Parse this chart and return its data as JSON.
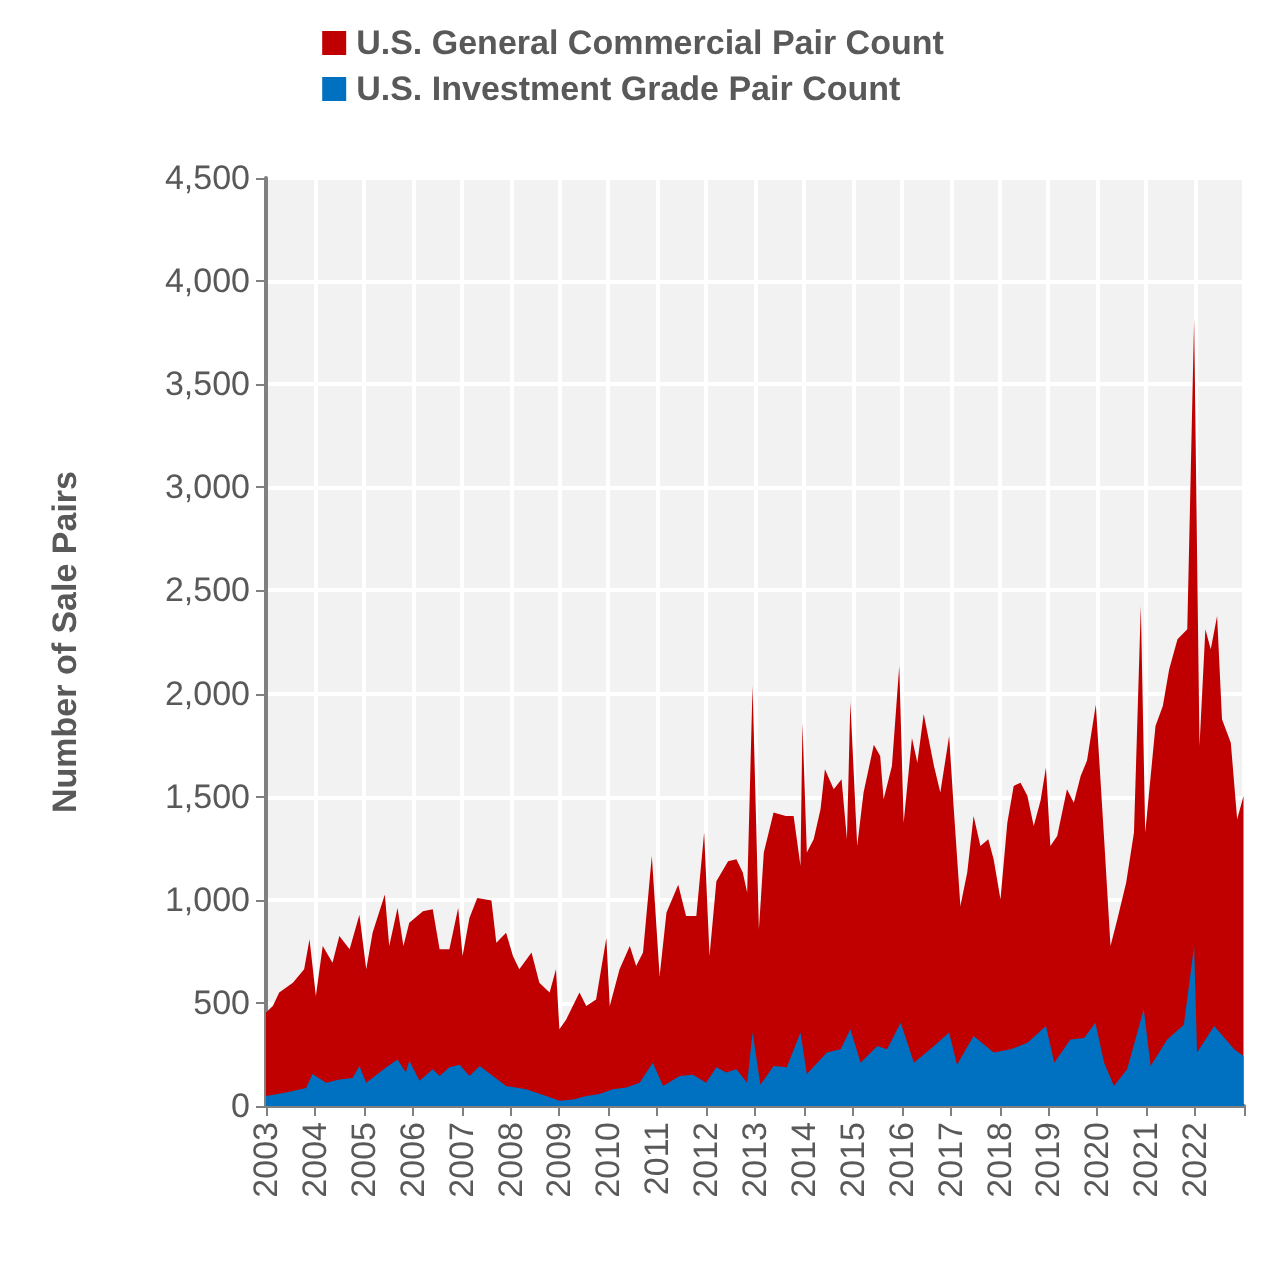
{
  "chart_data": {
    "type": "area",
    "ylabel": "Number of Sale Pairs",
    "legend": "top",
    "grid": true,
    "xlim": [
      2003,
      2023
    ],
    "xticks": [
      2003,
      2004,
      2005,
      2006,
      2007,
      2008,
      2009,
      2010,
      2011,
      2012,
      2013,
      2014,
      2015,
      2016,
      2017,
      2018,
      2019,
      2020,
      2021,
      2022
    ],
    "ylim": [
      0,
      4500
    ],
    "yticks": [
      {
        "value": 0,
        "label": "0"
      },
      {
        "value": 500,
        "label": "500"
      },
      {
        "value": 1000,
        "label": "1,000"
      },
      {
        "value": 1500,
        "label": "1,500"
      },
      {
        "value": 2000,
        "label": "2,000"
      },
      {
        "value": 2500,
        "label": "2,500"
      },
      {
        "value": 3000,
        "label": "3,000"
      },
      {
        "value": 3500,
        "label": "3,500"
      },
      {
        "value": 4000,
        "label": "4,000"
      },
      {
        "value": 4500,
        "label": "4,500"
      }
    ],
    "series": [
      {
        "name": "U.S. General Commercial Pair Count",
        "color": "#c00000",
        "x": [
          2003.0,
          2003.14,
          2003.27,
          2003.55,
          2003.78,
          2003.89,
          2004.02,
          2004.16,
          2004.36,
          2004.5,
          2004.71,
          2004.91,
          2005.05,
          2005.18,
          2005.43,
          2005.52,
          2005.69,
          2005.81,
          2005.93,
          2006.21,
          2006.41,
          2006.55,
          2006.75,
          2006.93,
          2007.02,
          2007.16,
          2007.32,
          2007.61,
          2007.71,
          2007.91,
          2008.05,
          2008.18,
          2008.43,
          2008.59,
          2008.8,
          2008.93,
          2009.0,
          2009.14,
          2009.41,
          2009.55,
          2009.75,
          2009.96,
          2010.03,
          2010.23,
          2010.44,
          2010.57,
          2010.71,
          2010.89,
          2011.05,
          2011.19,
          2011.43,
          2011.59,
          2011.8,
          2011.96,
          2012.07,
          2012.21,
          2012.45,
          2012.62,
          2012.75,
          2012.84,
          2012.95,
          2013.08,
          2013.18,
          2013.38,
          2013.63,
          2013.79,
          2013.93,
          2013.97,
          2014.06,
          2014.2,
          2014.34,
          2014.43,
          2014.61,
          2014.77,
          2014.88,
          2014.95,
          2015.09,
          2015.22,
          2015.43,
          2015.56,
          2015.63,
          2015.8,
          2015.95,
          2016.04,
          2016.21,
          2016.32,
          2016.45,
          2016.66,
          2016.79,
          2016.97,
          2017.07,
          2017.2,
          2017.34,
          2017.47,
          2017.61,
          2017.77,
          2017.88,
          2018.02,
          2018.16,
          2018.29,
          2018.43,
          2018.57,
          2018.7,
          2018.84,
          2018.95,
          2019.04,
          2019.18,
          2019.38,
          2019.52,
          2019.66,
          2019.79,
          2019.97,
          2020.14,
          2020.27,
          2020.41,
          2020.59,
          2020.75,
          2020.89,
          2020.98,
          2021.19,
          2021.34,
          2021.47,
          2021.64,
          2021.84,
          2021.98,
          2022.09,
          2022.21,
          2022.32,
          2022.45,
          2022.55,
          2022.73,
          2022.86,
          2022.99
        ],
        "values": [
          453,
          485,
          550,
          598,
          663,
          808,
          533,
          776,
          695,
          824,
          760,
          928,
          663,
          840,
          1025,
          776,
          960,
          776,
          889,
          944,
          954,
          760,
          760,
          960,
          727,
          912,
          1009,
          996,
          792,
          840,
          727,
          663,
          744,
          598,
          550,
          663,
          372,
          420,
          550,
          485,
          517,
          815,
          485,
          663,
          776,
          679,
          744,
          1212,
          630,
          938,
          1073,
          921,
          921,
          1326,
          727,
          1090,
          1187,
          1196,
          1132,
          1035,
          2037,
          857,
          1229,
          1423,
          1406,
          1406,
          1164,
          1859,
          1229,
          1293,
          1439,
          1633,
          1536,
          1584,
          1293,
          1959,
          1261,
          1520,
          1752,
          1697,
          1487,
          1649,
          2134,
          1374,
          1785,
          1665,
          1901,
          1649,
          1520,
          1794,
          1423,
          970,
          1132,
          1406,
          1261,
          1293,
          1196,
          1002,
          1374,
          1552,
          1568,
          1504,
          1358,
          1481,
          1642,
          1261,
          1309,
          1536,
          1471,
          1600,
          1675,
          1946,
          1293,
          776,
          905,
          1083,
          1326,
          2425,
          1326,
          1843,
          1940,
          2118,
          2263,
          2312,
          3815,
          1746,
          2312,
          2215,
          2376,
          1875,
          1762,
          1390,
          1503
        ]
      },
      {
        "name": "U.S. Investment Grade Pair Count",
        "color": "#0070c0",
        "x": [
          2003.0,
          2003.41,
          2003.82,
          2003.95,
          2004.23,
          2004.5,
          2004.77,
          2004.91,
          2005.05,
          2005.46,
          2005.69,
          2005.86,
          2005.93,
          2006.14,
          2006.41,
          2006.55,
          2006.75,
          2006.96,
          2007.16,
          2007.37,
          2007.64,
          2007.91,
          2008.32,
          2008.73,
          2009.0,
          2009.28,
          2009.55,
          2009.82,
          2010.09,
          2010.37,
          2010.64,
          2010.91,
          2011.12,
          2011.46,
          2011.73,
          2012.0,
          2012.21,
          2012.41,
          2012.62,
          2012.84,
          2012.95,
          2013.11,
          2013.38,
          2013.65,
          2013.93,
          2014.06,
          2014.47,
          2014.75,
          2014.95,
          2015.16,
          2015.5,
          2015.7,
          2015.98,
          2016.25,
          2016.66,
          2016.97,
          2017.13,
          2017.47,
          2017.88,
          2018.23,
          2018.57,
          2018.95,
          2019.12,
          2019.45,
          2019.73,
          2019.96,
          2020.14,
          2020.34,
          2020.61,
          2020.95,
          2021.09,
          2021.43,
          2021.77,
          2021.98,
          2022.04,
          2022.39,
          2022.8,
          2022.99
        ],
        "values": [
          48,
          65,
          87,
          155,
          113,
          129,
          136,
          194,
          113,
          188,
          226,
          162,
          220,
          123,
          178,
          145,
          188,
          200,
          145,
          194,
          145,
          97,
          81,
          48,
          26,
          32,
          48,
          58,
          81,
          90,
          113,
          210,
          97,
          145,
          152,
          113,
          188,
          162,
          178,
          113,
          356,
          103,
          194,
          188,
          356,
          155,
          259,
          275,
          372,
          210,
          291,
          275,
          404,
          210,
          291,
          356,
          200,
          339,
          259,
          275,
          307,
          388,
          210,
          323,
          330,
          404,
          210,
          97,
          178,
          469,
          194,
          323,
          394,
          776,
          259,
          388,
          275,
          242
        ]
      }
    ]
  }
}
